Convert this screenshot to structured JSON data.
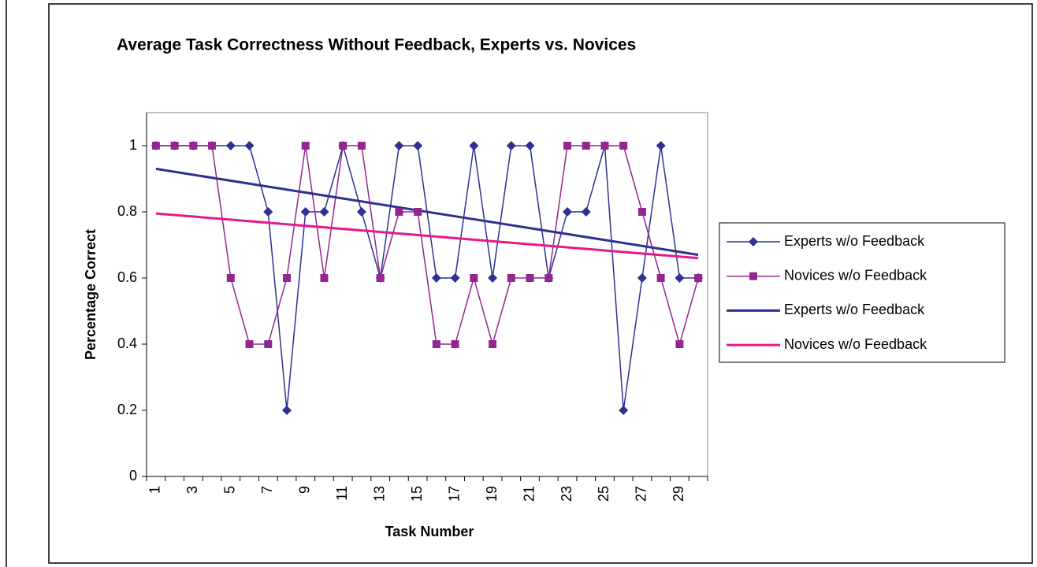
{
  "chart_data": {
    "type": "line",
    "title": "Average Task Correctness Without Feedback, Experts vs. Novices",
    "x_label": "Task Number",
    "y_label": "Percentage Correct",
    "categories": [
      1,
      null,
      3,
      null,
      5,
      null,
      7,
      null,
      9,
      null,
      11,
      null,
      13,
      null,
      15,
      null,
      17,
      null,
      19,
      null,
      21,
      null,
      23,
      null,
      25,
      null,
      27,
      null,
      29,
      null
    ],
    "ylim": [
      0,
      1.1
    ],
    "yticks": [
      0,
      0.2,
      0.4,
      0.6,
      0.8,
      1
    ],
    "legend": "right",
    "series": [
      {
        "name": "Experts w/o Feedback",
        "color": "#2e3192",
        "marker": "diamond",
        "values": [
          1,
          1,
          1,
          1,
          1,
          1,
          0.8,
          0.2,
          0.8,
          0.8,
          1,
          0.8,
          0.6,
          1,
          1,
          0.6,
          0.6,
          1,
          0.6,
          1,
          1,
          0.6,
          0.8,
          0.8,
          1,
          0.2,
          0.6,
          1,
          0.6,
          0.6
        ]
      },
      {
        "name": "Novices w/o Feedback",
        "color": "#93278f",
        "marker": "square",
        "values": [
          1,
          1,
          1,
          1,
          0.6,
          0.4,
          0.4,
          0.6,
          1,
          0.6,
          1,
          1,
          0.6,
          0.8,
          0.8,
          0.4,
          0.4,
          0.6,
          0.4,
          0.6,
          0.6,
          0.6,
          1,
          1,
          1,
          1,
          0.8,
          0.6,
          0.4,
          0.6
        ]
      },
      {
        "name": "Experts w/o Feedback",
        "color": "#2e3192",
        "trend": true,
        "x": [
          1,
          30
        ],
        "values": [
          0.93,
          0.67
        ]
      },
      {
        "name": "Novices w/o Feedback",
        "color": "#e6198c",
        "trend": true,
        "x": [
          1,
          30
        ],
        "values": [
          0.795,
          0.66
        ]
      }
    ]
  }
}
